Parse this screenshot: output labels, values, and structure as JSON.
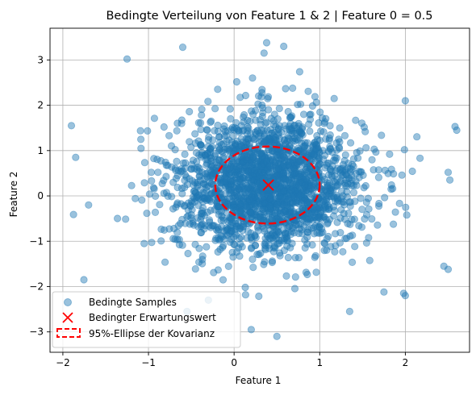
{
  "chart_data": {
    "type": "scatter",
    "title": "Bedingte Verteilung von Feature 1 & 2 | Feature 0 = 0.5",
    "xlabel": "Feature 1",
    "ylabel": "Feature 2",
    "xlim": [
      -2.15,
      2.75
    ],
    "ylim": [
      -3.45,
      3.7
    ],
    "xticks": [
      -2,
      -1,
      0,
      1,
      2
    ],
    "xtick_labels": [
      "−2",
      "−1",
      "0",
      "1",
      "2"
    ],
    "yticks": [
      -3,
      -2,
      -1,
      0,
      1,
      2,
      3
    ],
    "ytick_labels": [
      "−3",
      "−2",
      "−1",
      "0",
      "1",
      "2",
      "3"
    ],
    "grid": true,
    "legend_position": "lower-left",
    "samples": {
      "name": "Bedingte Samples",
      "color": "#1f77b4",
      "alpha": 0.45,
      "n": 2200,
      "mean": [
        0.4,
        0.25
      ],
      "std": [
        0.55,
        0.75
      ],
      "outliers": [
        [
          -1.9,
          1.55
        ],
        [
          -1.85,
          0.85
        ],
        [
          -1.7,
          -0.2
        ],
        [
          -1.25,
          3.02
        ],
        [
          -0.6,
          3.28
        ],
        [
          0.38,
          3.38
        ],
        [
          0.58,
          3.3
        ],
        [
          -1.05,
          -1.05
        ],
        [
          2.58,
          1.53
        ],
        [
          2.6,
          1.45
        ],
        [
          2.5,
          0.52
        ],
        [
          2.52,
          0.35
        ],
        [
          2.45,
          -1.55
        ],
        [
          2.5,
          -1.62
        ],
        [
          0.2,
          -2.95
        ],
        [
          0.5,
          -3.1
        ],
        [
          2.0,
          -2.2
        ],
        [
          1.98,
          -2.15
        ],
        [
          1.75,
          -2.12
        ],
        [
          1.35,
          -2.55
        ],
        [
          -0.55,
          -2.55
        ],
        [
          -0.3,
          -2.3
        ],
        [
          0.35,
          3.15
        ],
        [
          2.0,
          2.1
        ]
      ]
    },
    "mean_point": {
      "name": "Bedingter Erwartungswert",
      "x": 0.4,
      "y": 0.24,
      "color": "#ff0000",
      "marker": "x"
    },
    "ellipse": {
      "name": "95%-Ellipse der Kovarianz",
      "cx": 0.39,
      "cy": 0.24,
      "rx": 0.61,
      "ry": 0.85,
      "color": "#ff0000",
      "style": "dashed"
    }
  }
}
